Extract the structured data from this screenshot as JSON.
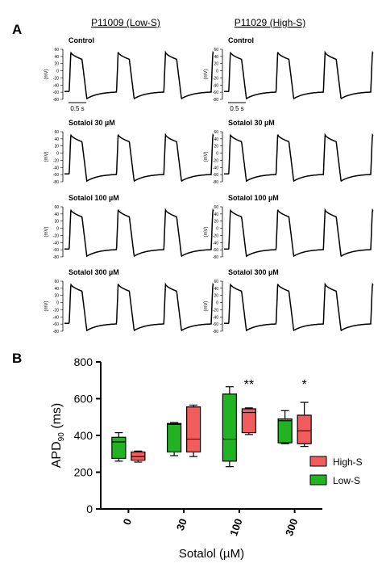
{
  "panel_a": {
    "label": "A",
    "columns": [
      {
        "title": "P11009 (Low-S)"
      },
      {
        "title": "P11029 (High-S)"
      }
    ],
    "rows": [
      {
        "condition": "Control"
      },
      {
        "condition": "Sotalol 30 µM"
      },
      {
        "condition": "Sotalol 100 µM"
      },
      {
        "condition": "Sotalol 300 µM"
      }
    ],
    "trace_axis": {
      "ylabel": "(mV)",
      "ticks": [
        60,
        40,
        20,
        0,
        -20,
        -40,
        -60,
        -80
      ],
      "ymin": -80,
      "ymax": 60
    },
    "scale_bar_label": "0.5 s",
    "trace_color": "#000000"
  },
  "panel_b": {
    "label": "B",
    "chart_data": {
      "type": "box",
      "xlabel": "Sotalol (µM)",
      "ylabel_main": "APD",
      "ylabel_sub": "90",
      "ylabel_unit": " (ms)",
      "ylim": [
        0,
        800
      ],
      "yticks": [
        0,
        200,
        400,
        600,
        800
      ],
      "categories": [
        "0",
        "30",
        "100",
        "300"
      ],
      "legend_position": "right",
      "legend": [
        {
          "label": "High-S",
          "color": "#f25c5c"
        },
        {
          "label": "Low-S",
          "color": "#22b322"
        }
      ],
      "series": [
        {
          "name": "Low-S",
          "color": "#22b322",
          "boxes": [
            {
              "min": 260,
              "q1": 275,
              "median": 365,
              "q3": 390,
              "max": 415
            },
            {
              "min": 290,
              "q1": 310,
              "median": 460,
              "q3": 465,
              "max": 470
            },
            {
              "min": 230,
              "q1": 260,
              "median": 380,
              "q3": 625,
              "max": 665
            },
            {
              "min": 355,
              "q1": 360,
              "median": 480,
              "q3": 490,
              "max": 535
            }
          ]
        },
        {
          "name": "High-S",
          "color": "#f25c5c",
          "boxes": [
            {
              "min": 255,
              "q1": 265,
              "median": 285,
              "q3": 310,
              "max": 315
            },
            {
              "min": 285,
              "q1": 310,
              "median": 380,
              "q3": 555,
              "max": 565
            },
            {
              "min": 405,
              "q1": 415,
              "median": 525,
              "q3": 545,
              "max": 550
            },
            {
              "min": 340,
              "q1": 355,
              "median": 425,
              "q3": 510,
              "max": 580
            }
          ]
        }
      ],
      "annotations": [
        {
          "category": "100",
          "text": "**"
        },
        {
          "category": "300",
          "text": "*"
        }
      ]
    }
  }
}
